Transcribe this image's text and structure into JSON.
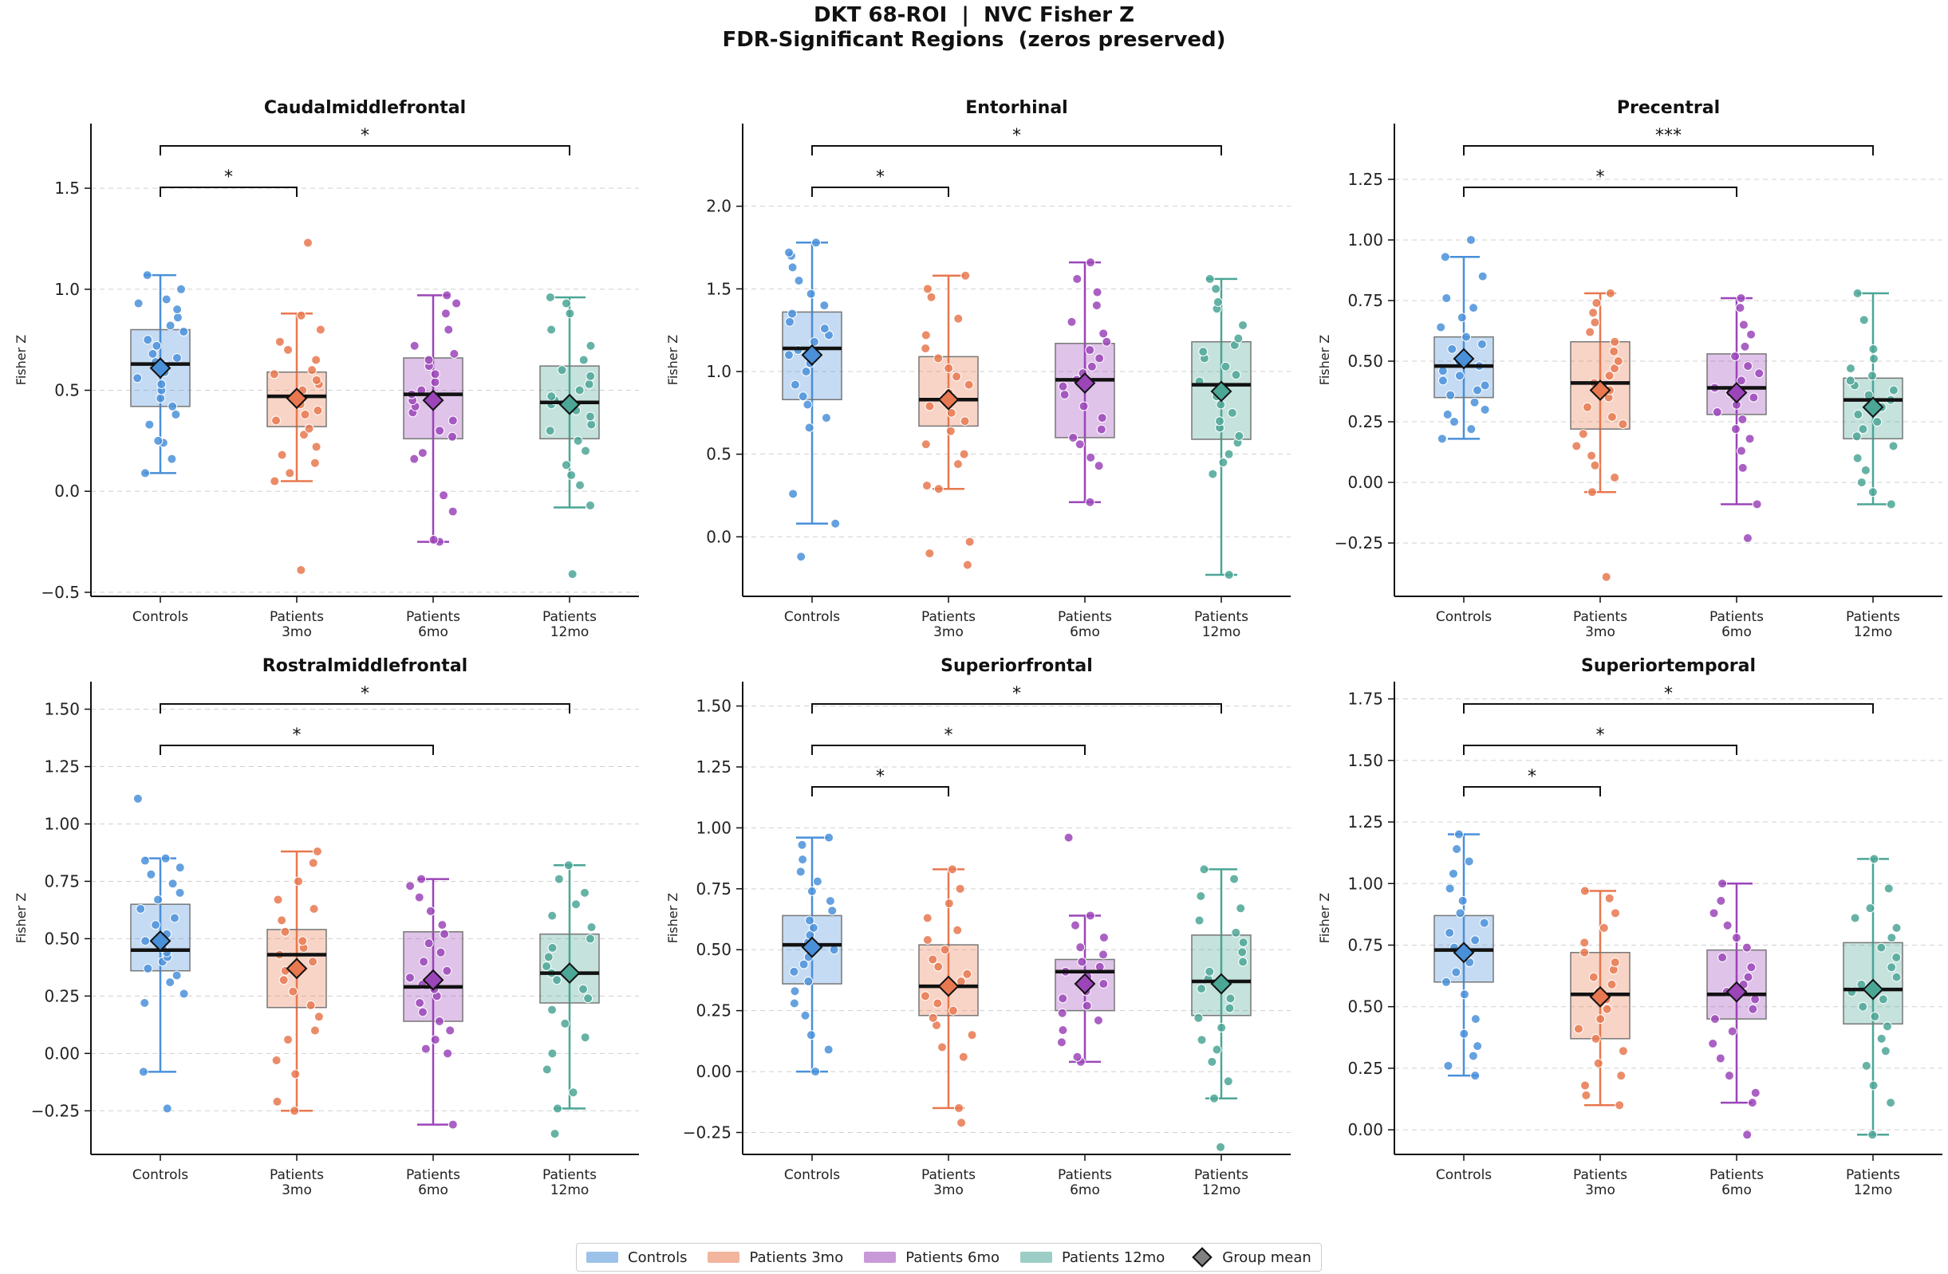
{
  "title": {
    "line1": "DKT 68-ROI  |  NVC Fisher Z",
    "line2": "FDR-Significant Regions  (zeros preserved)"
  },
  "colors": {
    "controls": "#4a90d9",
    "p3": "#e8784f",
    "p6": "#9b45b8",
    "p12": "#4ba696"
  },
  "legend": {
    "items": [
      {
        "label": "Controls",
        "color": "#4a90d9"
      },
      {
        "label": "Patients 3mo",
        "color": "#e8784f"
      },
      {
        "label": "Patients 6mo",
        "color": "#9b45b8"
      },
      {
        "label": "Patients 12mo",
        "color": "#4ba696"
      }
    ],
    "mean_label": "Group mean"
  },
  "chart_data": [
    {
      "type": "box",
      "title": "Caudalmiddlefrontal",
      "ylabel": "Fisher Z",
      "categories": [
        "Controls",
        "Patients 3mo",
        "Patients 6mo",
        "Patients 12mo"
      ],
      "ylim": [
        -0.52,
        1.82
      ],
      "yticks": [
        -0.5,
        0.0,
        0.5,
        1.0,
        1.5
      ],
      "tick_labels": [
        "−0.5",
        "0.0",
        "0.5",
        "1.0",
        "1.5"
      ],
      "groups": [
        {
          "q1": 0.42,
          "median": 0.63,
          "q3": 0.8,
          "whislo": 0.09,
          "whishi": 1.07,
          "mean": 0.61,
          "points": [
            0.09,
            0.16,
            0.24,
            0.25,
            0.33,
            0.38,
            0.42,
            0.46,
            0.5,
            0.53,
            0.56,
            0.59,
            0.62,
            0.64,
            0.66,
            0.68,
            0.72,
            0.75,
            0.79,
            0.82,
            0.86,
            0.9,
            0.93,
            0.95,
            1.0,
            1.07
          ]
        },
        {
          "q1": 0.32,
          "median": 0.47,
          "q3": 0.59,
          "whislo": 0.05,
          "whishi": 0.88,
          "mean": 0.46,
          "points": [
            -0.39,
            0.05,
            0.09,
            0.14,
            0.18,
            0.22,
            0.28,
            0.31,
            0.35,
            0.38,
            0.4,
            0.43,
            0.45,
            0.47,
            0.5,
            0.53,
            0.55,
            0.58,
            0.6,
            0.65,
            0.7,
            0.74,
            0.8,
            0.87,
            1.23
          ]
        },
        {
          "q1": 0.26,
          "median": 0.48,
          "q3": 0.66,
          "whislo": -0.25,
          "whishi": 0.97,
          "mean": 0.45,
          "points": [
            -0.25,
            -0.24,
            -0.1,
            -0.02,
            0.16,
            0.19,
            0.27,
            0.3,
            0.35,
            0.39,
            0.42,
            0.45,
            0.48,
            0.5,
            0.54,
            0.58,
            0.62,
            0.65,
            0.68,
            0.72,
            0.8,
            0.88,
            0.93,
            0.97
          ]
        },
        {
          "q1": 0.26,
          "median": 0.44,
          "q3": 0.62,
          "whislo": -0.08,
          "whishi": 0.96,
          "mean": 0.43,
          "points": [
            -0.41,
            -0.07,
            0.03,
            0.08,
            0.13,
            0.2,
            0.25,
            0.3,
            0.33,
            0.37,
            0.4,
            0.43,
            0.45,
            0.47,
            0.5,
            0.53,
            0.57,
            0.6,
            0.65,
            0.72,
            0.8,
            0.88,
            0.93,
            0.96
          ]
        }
      ],
      "brackets": [
        {
          "from": 0,
          "to": 1,
          "label": "*"
        },
        {
          "from": 0,
          "to": 3,
          "label": "*"
        }
      ]
    },
    {
      "type": "box",
      "title": "Entorhinal",
      "ylabel": "Fisher Z",
      "categories": [
        "Controls",
        "Patients 3mo",
        "Patients 6mo",
        "Patients 12mo"
      ],
      "ylim": [
        -0.36,
        2.5
      ],
      "yticks": [
        0.0,
        0.5,
        1.0,
        1.5,
        2.0
      ],
      "tick_labels": [
        "0.0",
        "0.5",
        "1.0",
        "1.5",
        "2.0"
      ],
      "groups": [
        {
          "q1": 0.83,
          "median": 1.14,
          "q3": 1.36,
          "whislo": 0.08,
          "whishi": 1.78,
          "mean": 1.1,
          "points": [
            -0.12,
            0.08,
            0.26,
            0.66,
            0.72,
            0.8,
            0.85,
            0.92,
            1.0,
            1.05,
            1.1,
            1.13,
            1.18,
            1.22,
            1.26,
            1.3,
            1.35,
            1.4,
            1.47,
            1.55,
            1.63,
            1.7,
            1.72,
            1.78
          ]
        },
        {
          "q1": 0.67,
          "median": 0.83,
          "q3": 1.09,
          "whislo": 0.29,
          "whishi": 1.58,
          "mean": 0.83,
          "points": [
            -0.17,
            -0.1,
            -0.03,
            0.29,
            0.31,
            0.44,
            0.5,
            0.56,
            0.64,
            0.7,
            0.75,
            0.79,
            0.83,
            0.87,
            0.92,
            0.97,
            1.02,
            1.08,
            1.14,
            1.22,
            1.32,
            1.45,
            1.5,
            1.58
          ]
        },
        {
          "q1": 0.6,
          "median": 0.95,
          "q3": 1.17,
          "whislo": 0.21,
          "whishi": 1.66,
          "mean": 0.93,
          "points": [
            0.21,
            0.43,
            0.48,
            0.56,
            0.6,
            0.65,
            0.72,
            0.79,
            0.86,
            0.91,
            0.95,
            0.99,
            1.03,
            1.08,
            1.13,
            1.18,
            1.23,
            1.3,
            1.4,
            1.48,
            1.56,
            1.66
          ]
        },
        {
          "q1": 0.59,
          "median": 0.92,
          "q3": 1.18,
          "whislo": -0.23,
          "whishi": 1.56,
          "mean": 0.88,
          "points": [
            -0.23,
            0.38,
            0.45,
            0.5,
            0.57,
            0.61,
            0.66,
            0.7,
            0.75,
            0.8,
            0.85,
            0.9,
            0.94,
            0.98,
            1.03,
            1.08,
            1.12,
            1.16,
            1.2,
            1.28,
            1.38,
            1.42,
            1.5,
            1.56
          ]
        }
      ],
      "brackets": [
        {
          "from": 0,
          "to": 1,
          "label": "*"
        },
        {
          "from": 0,
          "to": 3,
          "label": "*"
        }
      ]
    },
    {
      "type": "box",
      "title": "Precentral",
      "ylabel": "Fisher Z",
      "categories": [
        "Controls",
        "Patients 3mo",
        "Patients 6mo",
        "Patients 12mo"
      ],
      "ylim": [
        -0.47,
        1.48
      ],
      "yticks": [
        -0.25,
        0.0,
        0.25,
        0.5,
        0.75,
        1.0,
        1.25
      ],
      "tick_labels": [
        "−0.25",
        "0.00",
        "0.25",
        "0.50",
        "0.75",
        "1.00",
        "1.25"
      ],
      "groups": [
        {
          "q1": 0.35,
          "median": 0.48,
          "q3": 0.6,
          "whislo": 0.18,
          "whishi": 0.93,
          "mean": 0.51,
          "points": [
            0.18,
            0.22,
            0.25,
            0.28,
            0.3,
            0.33,
            0.36,
            0.38,
            0.4,
            0.42,
            0.44,
            0.46,
            0.48,
            0.5,
            0.52,
            0.55,
            0.57,
            0.6,
            0.64,
            0.68,
            0.72,
            0.76,
            0.85,
            0.93,
            1.0
          ]
        },
        {
          "q1": 0.22,
          "median": 0.41,
          "q3": 0.58,
          "whislo": -0.04,
          "whishi": 0.78,
          "mean": 0.38,
          "points": [
            -0.39,
            -0.04,
            0.02,
            0.07,
            0.11,
            0.15,
            0.2,
            0.24,
            0.27,
            0.31,
            0.35,
            0.38,
            0.41,
            0.44,
            0.47,
            0.5,
            0.54,
            0.58,
            0.62,
            0.66,
            0.7,
            0.74,
            0.78
          ]
        },
        {
          "q1": 0.28,
          "median": 0.39,
          "q3": 0.53,
          "whislo": -0.09,
          "whishi": 0.76,
          "mean": 0.37,
          "points": [
            -0.23,
            -0.09,
            0.06,
            0.13,
            0.18,
            0.22,
            0.26,
            0.29,
            0.32,
            0.35,
            0.37,
            0.39,
            0.42,
            0.45,
            0.48,
            0.52,
            0.56,
            0.61,
            0.65,
            0.72,
            0.76
          ]
        },
        {
          "q1": 0.18,
          "median": 0.34,
          "q3": 0.43,
          "whislo": -0.09,
          "whishi": 0.78,
          "mean": 0.31,
          "points": [
            -0.09,
            -0.04,
            0.0,
            0.05,
            0.1,
            0.15,
            0.19,
            0.22,
            0.25,
            0.28,
            0.31,
            0.34,
            0.36,
            0.38,
            0.4,
            0.42,
            0.44,
            0.47,
            0.51,
            0.55,
            0.67,
            0.78
          ]
        }
      ],
      "brackets": [
        {
          "from": 0,
          "to": 2,
          "label": "*"
        },
        {
          "from": 0,
          "to": 3,
          "label": "***"
        }
      ]
    },
    {
      "type": "box",
      "title": "Rostralmiddlefrontal",
      "ylabel": "Fisher Z",
      "categories": [
        "Controls",
        "Patients 3mo",
        "Patients 6mo",
        "Patients 12mo"
      ],
      "ylim": [
        -0.44,
        1.62
      ],
      "yticks": [
        -0.25,
        0.0,
        0.25,
        0.5,
        0.75,
        1.0,
        1.25,
        1.5
      ],
      "tick_labels": [
        "−0.25",
        "0.00",
        "0.25",
        "0.50",
        "0.75",
        "1.00",
        "1.25",
        "1.50"
      ],
      "groups": [
        {
          "q1": 0.36,
          "median": 0.45,
          "q3": 0.65,
          "whislo": -0.08,
          "whishi": 0.85,
          "mean": 0.49,
          "points": [
            -0.24,
            -0.08,
            0.22,
            0.26,
            0.31,
            0.34,
            0.37,
            0.4,
            0.42,
            0.44,
            0.46,
            0.49,
            0.52,
            0.56,
            0.59,
            0.63,
            0.67,
            0.7,
            0.74,
            0.78,
            0.81,
            0.84,
            0.85,
            1.11
          ]
        },
        {
          "q1": 0.2,
          "median": 0.43,
          "q3": 0.54,
          "whislo": -0.25,
          "whishi": 0.88,
          "mean": 0.37,
          "points": [
            -0.25,
            -0.21,
            -0.09,
            -0.03,
            0.06,
            0.1,
            0.16,
            0.21,
            0.27,
            0.32,
            0.36,
            0.4,
            0.43,
            0.46,
            0.49,
            0.53,
            0.58,
            0.63,
            0.67,
            0.75,
            0.83,
            0.88
          ]
        },
        {
          "q1": 0.14,
          "median": 0.29,
          "q3": 0.53,
          "whislo": -0.31,
          "whishi": 0.76,
          "mean": 0.32,
          "points": [
            -0.31,
            0.0,
            0.02,
            0.06,
            0.1,
            0.14,
            0.18,
            0.22,
            0.25,
            0.28,
            0.3,
            0.33,
            0.36,
            0.4,
            0.44,
            0.48,
            0.52,
            0.56,
            0.62,
            0.68,
            0.73,
            0.76
          ]
        },
        {
          "q1": 0.22,
          "median": 0.35,
          "q3": 0.52,
          "whislo": -0.24,
          "whishi": 0.82,
          "mean": 0.35,
          "points": [
            -0.35,
            -0.24,
            -0.17,
            -0.07,
            0.0,
            0.07,
            0.13,
            0.19,
            0.24,
            0.28,
            0.32,
            0.35,
            0.38,
            0.42,
            0.46,
            0.5,
            0.55,
            0.6,
            0.65,
            0.7,
            0.76,
            0.82
          ]
        }
      ],
      "brackets": [
        {
          "from": 0,
          "to": 2,
          "label": "*"
        },
        {
          "from": 0,
          "to": 3,
          "label": "*"
        }
      ]
    },
    {
      "type": "box",
      "title": "Superiorfrontal",
      "ylabel": "Fisher Z",
      "categories": [
        "Controls",
        "Patients 3mo",
        "Patients 6mo",
        "Patients 12mo"
      ],
      "ylim": [
        -0.34,
        1.6
      ],
      "yticks": [
        -0.25,
        0.0,
        0.25,
        0.5,
        0.75,
        1.0,
        1.25,
        1.5
      ],
      "tick_labels": [
        "−0.25",
        "0.00",
        "0.25",
        "0.50",
        "0.75",
        "1.00",
        "1.25",
        "1.50"
      ],
      "groups": [
        {
          "q1": 0.36,
          "median": 0.52,
          "q3": 0.64,
          "whislo": 0.0,
          "whishi": 0.96,
          "mean": 0.51,
          "points": [
            0.0,
            0.09,
            0.15,
            0.23,
            0.28,
            0.33,
            0.37,
            0.41,
            0.44,
            0.47,
            0.5,
            0.53,
            0.56,
            0.59,
            0.62,
            0.66,
            0.7,
            0.74,
            0.78,
            0.82,
            0.87,
            0.93,
            0.96
          ]
        },
        {
          "q1": 0.23,
          "median": 0.35,
          "q3": 0.52,
          "whislo": -0.15,
          "whishi": 0.83,
          "mean": 0.35,
          "points": [
            -0.21,
            -0.15,
            0.06,
            0.1,
            0.15,
            0.19,
            0.22,
            0.25,
            0.28,
            0.31,
            0.34,
            0.37,
            0.4,
            0.43,
            0.46,
            0.5,
            0.54,
            0.58,
            0.63,
            0.69,
            0.75,
            0.83
          ]
        },
        {
          "q1": 0.25,
          "median": 0.41,
          "q3": 0.46,
          "whislo": 0.04,
          "whishi": 0.64,
          "mean": 0.36,
          "points": [
            0.04,
            0.06,
            0.12,
            0.17,
            0.21,
            0.24,
            0.27,
            0.3,
            0.33,
            0.36,
            0.39,
            0.41,
            0.43,
            0.45,
            0.48,
            0.51,
            0.55,
            0.6,
            0.64,
            0.96
          ]
        },
        {
          "q1": 0.23,
          "median": 0.37,
          "q3": 0.56,
          "whislo": -0.11,
          "whishi": 0.83,
          "mean": 0.36,
          "points": [
            -0.31,
            -0.11,
            -0.04,
            0.04,
            0.09,
            0.13,
            0.18,
            0.22,
            0.26,
            0.3,
            0.34,
            0.38,
            0.41,
            0.45,
            0.49,
            0.53,
            0.57,
            0.62,
            0.67,
            0.72,
            0.79,
            0.83
          ]
        }
      ],
      "brackets": [
        {
          "from": 0,
          "to": 1,
          "label": "*"
        },
        {
          "from": 0,
          "to": 2,
          "label": "*"
        },
        {
          "from": 0,
          "to": 3,
          "label": "*"
        }
      ]
    },
    {
      "type": "box",
      "title": "Superiortemporal",
      "ylabel": "Fisher Z",
      "categories": [
        "Controls",
        "Patients 3mo",
        "Patients 6mo",
        "Patients 12mo"
      ],
      "ylim": [
        -0.1,
        1.82
      ],
      "yticks": [
        0.0,
        0.25,
        0.5,
        0.75,
        1.0,
        1.25,
        1.5,
        1.75
      ],
      "tick_labels": [
        "0.00",
        "0.25",
        "0.50",
        "0.75",
        "1.00",
        "1.25",
        "1.50",
        "1.75"
      ],
      "groups": [
        {
          "q1": 0.6,
          "median": 0.73,
          "q3": 0.87,
          "whislo": 0.22,
          "whishi": 1.2,
          "mean": 0.72,
          "points": [
            0.22,
            0.26,
            0.3,
            0.34,
            0.39,
            0.45,
            0.55,
            0.6,
            0.64,
            0.68,
            0.71,
            0.74,
            0.77,
            0.8,
            0.84,
            0.88,
            0.93,
            0.98,
            1.04,
            1.09,
            1.14,
            1.2
          ]
        },
        {
          "q1": 0.37,
          "median": 0.55,
          "q3": 0.72,
          "whislo": 0.1,
          "whishi": 0.97,
          "mean": 0.54,
          "points": [
            0.1,
            0.14,
            0.18,
            0.22,
            0.27,
            0.32,
            0.37,
            0.41,
            0.45,
            0.49,
            0.53,
            0.56,
            0.59,
            0.62,
            0.65,
            0.68,
            0.72,
            0.76,
            0.82,
            0.88,
            0.94,
            0.97
          ]
        },
        {
          "q1": 0.45,
          "median": 0.55,
          "q3": 0.73,
          "whislo": 0.11,
          "whishi": 1.0,
          "mean": 0.56,
          "points": [
            -0.02,
            0.11,
            0.15,
            0.22,
            0.29,
            0.35,
            0.4,
            0.45,
            0.49,
            0.53,
            0.56,
            0.59,
            0.62,
            0.66,
            0.7,
            0.74,
            0.78,
            0.83,
            0.88,
            0.93,
            1.0
          ]
        },
        {
          "q1": 0.43,
          "median": 0.57,
          "q3": 0.76,
          "whislo": -0.02,
          "whishi": 1.1,
          "mean": 0.57,
          "points": [
            -0.02,
            0.11,
            0.18,
            0.26,
            0.32,
            0.37,
            0.42,
            0.46,
            0.5,
            0.53,
            0.56,
            0.59,
            0.62,
            0.66,
            0.7,
            0.74,
            0.78,
            0.82,
            0.86,
            0.9,
            0.98,
            1.1
          ]
        }
      ],
      "brackets": [
        {
          "from": 0,
          "to": 1,
          "label": "*"
        },
        {
          "from": 0,
          "to": 2,
          "label": "*"
        },
        {
          "from": 0,
          "to": 3,
          "label": "*"
        }
      ]
    }
  ]
}
